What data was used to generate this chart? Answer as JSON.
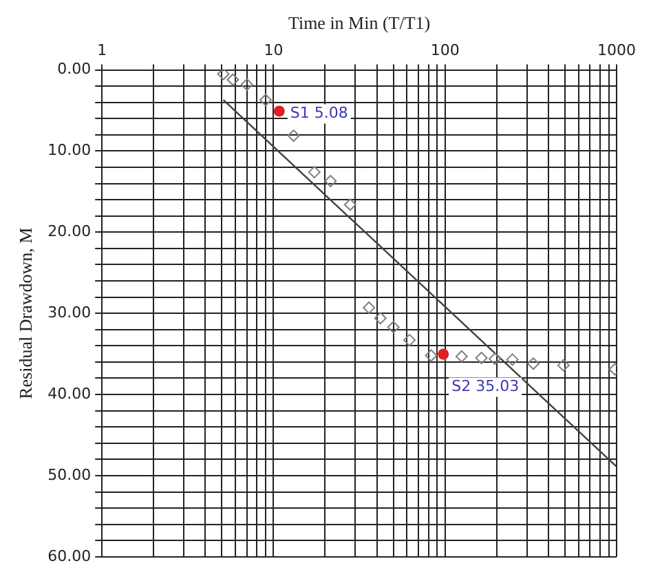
{
  "chart_data": {
    "type": "scatter",
    "xlabel": "Time in Min (T/T1)",
    "ylabel": "Residual Drawdown, M",
    "log": "x",
    "grid": true,
    "legend": false,
    "xlim": [
      1,
      1000
    ],
    "xticks": [
      1,
      {
        "value": 2,
        "label": null
      },
      {
        "value": 3,
        "label": null
      },
      {
        "value": 4,
        "label": null
      },
      {
        "value": 5,
        "label": null
      },
      {
        "value": 6,
        "label": null
      },
      {
        "value": 7,
        "label": null
      },
      {
        "value": 8,
        "label": null
      },
      {
        "value": 9,
        "label": null
      },
      10,
      {
        "value": 20,
        "label": null
      },
      {
        "value": 30,
        "label": null
      },
      {
        "value": 40,
        "label": null
      },
      {
        "value": 50,
        "label": null
      },
      {
        "value": 60,
        "label": null
      },
      {
        "value": 70,
        "label": null
      },
      {
        "value": 80,
        "label": null
      },
      {
        "value": 90,
        "label": null
      },
      100,
      {
        "value": 200,
        "label": null
      },
      {
        "value": 300,
        "label": null
      },
      {
        "value": 400,
        "label": null
      },
      {
        "value": 500,
        "label": null
      },
      {
        "value": 600,
        "label": null
      },
      {
        "value": 700,
        "label": null
      },
      {
        "value": 800,
        "label": null
      },
      {
        "value": 900,
        "label": null
      },
      1000
    ],
    "ylim": [
      60,
      0
    ],
    "yticks": [
      {
        "value": 0,
        "label": "0.00"
      },
      {
        "value": 2,
        "label": null
      },
      {
        "value": 4,
        "label": null
      },
      {
        "value": 6,
        "label": null
      },
      {
        "value": 8,
        "label": null
      },
      {
        "value": 10,
        "label": "10.00"
      },
      {
        "value": 12,
        "label": null
      },
      {
        "value": 14,
        "label": null
      },
      {
        "value": 16,
        "label": null
      },
      {
        "value": 18,
        "label": null
      },
      {
        "value": 20,
        "label": "20.00"
      },
      {
        "value": 22,
        "label": null
      },
      {
        "value": 24,
        "label": null
      },
      {
        "value": 26,
        "label": null
      },
      {
        "value": 28,
        "label": null
      },
      {
        "value": 30,
        "label": "30.00"
      },
      {
        "value": 32,
        "label": null
      },
      {
        "value": 34,
        "label": null
      },
      {
        "value": 36,
        "label": null
      },
      {
        "value": 38,
        "label": null
      },
      {
        "value": 40,
        "label": "40.00"
      },
      {
        "value": 42,
        "label": null
      },
      {
        "value": 44,
        "label": null
      },
      {
        "value": 46,
        "label": null
      },
      {
        "value": 48,
        "label": null
      },
      {
        "value": 50,
        "label": "50.00"
      },
      {
        "value": 52,
        "label": null
      },
      {
        "value": 54,
        "label": null
      },
      {
        "value": 56,
        "label": null
      },
      {
        "value": 58,
        "label": null
      },
      {
        "value": 60,
        "label": "60.00"
      }
    ],
    "series": [
      {
        "marker": "diamond",
        "color": "#808080",
        "x": [
          5.1,
          5.8,
          7,
          9,
          13.1,
          17.3,
          21.5,
          28,
          36,
          42,
          50,
          62,
          83,
          125,
          163,
          195,
          247,
          327,
          490,
          977
        ],
        "values": [
          0.5,
          1.2,
          1.8,
          3.7,
          8.1,
          12.6,
          13.7,
          16.6,
          29.3,
          30.6,
          31.7,
          33.3,
          35.2,
          35.3,
          35.5,
          35.6,
          35.7,
          36.2,
          36.4,
          36.9
        ]
      },
      {
        "type": "scatter",
        "marker": "circle",
        "color": "#e02020",
        "x": [
          10.8,
          97.7
        ],
        "values": [
          5.08,
          35.03
        ]
      },
      {
        "type": "line",
        "marker": "none",
        "color": "#404040",
        "x": [
          5.1,
          1000
        ],
        "values": [
          3.7,
          48.9
        ]
      }
    ],
    "annotations": [
      {
        "text": "S1 5.08",
        "x": 10.8,
        "y": 5.08
      },
      {
        "text": "S2 35.03",
        "x": 97.7,
        "y": 35.03
      }
    ]
  }
}
